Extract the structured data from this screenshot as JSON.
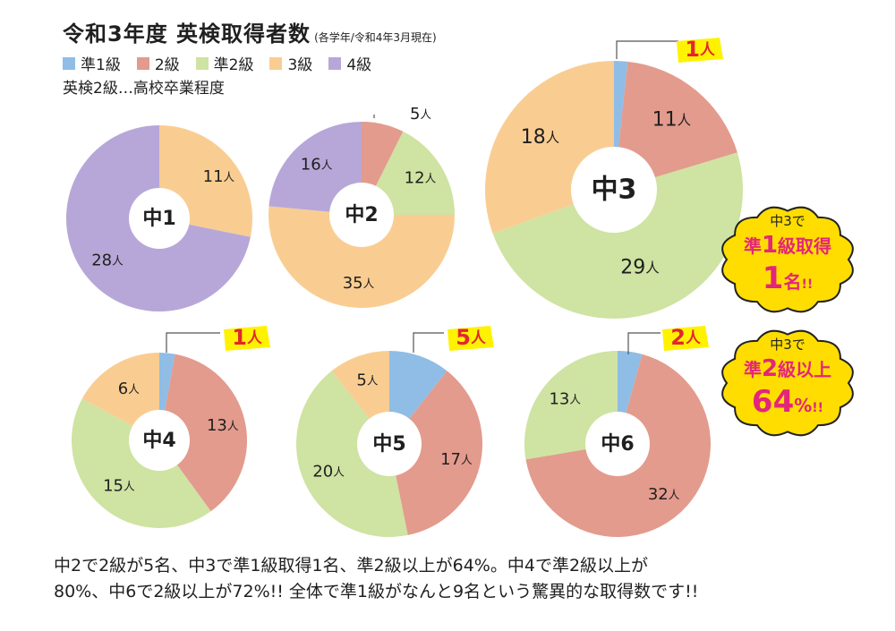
{
  "title": "令和3年度 英検取得者数",
  "subtitle": "(各学年/令和4年3月現在)",
  "legend": [
    {
      "label": "準1級",
      "color": "#8fbde6"
    },
    {
      "label": "2級",
      "color": "#e39b8d"
    },
    {
      "label": "準2級",
      "color": "#cfe3a2"
    },
    {
      "label": "3級",
      "color": "#f9cd92"
    },
    {
      "label": "4級",
      "color": "#b7a7d8"
    }
  ],
  "note": "英検2級…高校卒業程度",
  "chart_data": [
    {
      "type": "pie",
      "title": "中1",
      "unit": "人",
      "slices": [
        {
          "label": "3級",
          "value": 11
        },
        {
          "label": "4級",
          "value": 28
        }
      ]
    },
    {
      "type": "pie",
      "title": "中2",
      "unit": "人",
      "slices": [
        {
          "label": "2級",
          "value": 5
        },
        {
          "label": "準2級",
          "value": 12
        },
        {
          "label": "3級",
          "value": 35
        },
        {
          "label": "4級",
          "value": 16
        }
      ]
    },
    {
      "type": "pie",
      "title": "中3",
      "unit": "人",
      "slices": [
        {
          "label": "準1級",
          "value": 1
        },
        {
          "label": "2級",
          "value": 11
        },
        {
          "label": "準2級",
          "value": 29
        },
        {
          "label": "3級",
          "value": 18
        }
      ]
    },
    {
      "type": "pie",
      "title": "中4",
      "unit": "人",
      "slices": [
        {
          "label": "準1級",
          "value": 1
        },
        {
          "label": "2級",
          "value": 13
        },
        {
          "label": "準2級",
          "value": 15
        },
        {
          "label": "3級",
          "value": 6
        }
      ]
    },
    {
      "type": "pie",
      "title": "中5",
      "unit": "人",
      "slices": [
        {
          "label": "準1級",
          "value": 5
        },
        {
          "label": "2級",
          "value": 17
        },
        {
          "label": "準2級",
          "value": 20
        },
        {
          "label": "3級",
          "value": 5
        }
      ]
    },
    {
      "type": "pie",
      "title": "中6",
      "unit": "人",
      "slices": [
        {
          "label": "準1級",
          "value": 2
        },
        {
          "label": "2級",
          "value": 32
        },
        {
          "label": "準2級",
          "value": 13
        }
      ]
    }
  ],
  "callouts": [
    {
      "line1": "中3で",
      "line2a": "準",
      "line2b": "1",
      "line2c": "級取得",
      "line3a": "1",
      "line3b": "名",
      "line3c": "!!"
    },
    {
      "line1": "中3で",
      "line2a": "準",
      "line2b": "2",
      "line2c": "級以上",
      "line3a": "64",
      "line3b": "%",
      "line3c": "!!"
    }
  ],
  "footer": {
    "line1": "中2で2級が5名、中3で準1級取得1名、準2級以上が64%。中4で準2級以上が",
    "line2": "80%、中6で2級以上が72%!! 全体で準1級がなんと9名という驚異的な取得数です!!"
  }
}
